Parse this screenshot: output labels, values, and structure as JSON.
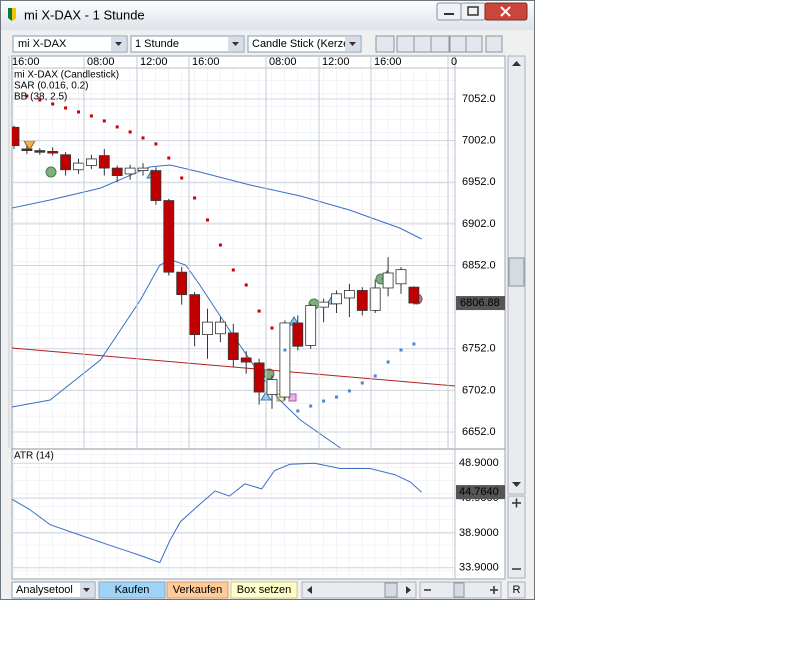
{
  "window": {
    "title": "mi X-DAX - 1 Stunde"
  },
  "toolbar": {
    "instrument": "mi X-DAX",
    "interval": "1 Stunde",
    "chart_type": "Candle Stick (Kerze"
  },
  "chart_data": [
    {
      "type": "candlestick",
      "legend": [
        "mi X-DAX (Candlestick)",
        "SAR (0.016, 0.2)",
        "BB (38, 2.5)"
      ],
      "x_labels": [
        "16:00",
        "08:00",
        "12:00",
        "16:00",
        "08:00",
        "12:00",
        "16:00",
        "0"
      ],
      "open": [
        7018,
        6992,
        6990,
        6989,
        6985,
        6967,
        6972,
        6984,
        6969,
        6962,
        6966,
        6966,
        6930,
        6844,
        6817,
        6769,
        6770,
        6771,
        6741,
        6735,
        6697,
        6694,
        6783,
        6756,
        6802,
        6806,
        6813,
        6822,
        6798,
        6825,
        6830,
        6826
      ],
      "high": [
        7020,
        6996,
        6993,
        6994,
        6988,
        6980,
        6985,
        6992,
        6972,
        6973,
        6975,
        6970,
        6932,
        6850,
        6820,
        6800,
        6790,
        6782,
        6749,
        6740,
        6720,
        6786,
        6792,
        6806,
        6812,
        6822,
        6830,
        6826,
        6835,
        6862,
        6850,
        6827
      ],
      "low": [
        6992,
        6986,
        6985,
        6984,
        6960,
        6962,
        6968,
        6960,
        6952,
        6955,
        6960,
        6925,
        6840,
        6805,
        6755,
        6740,
        6760,
        6730,
        6722,
        6685,
        6680,
        6690,
        6750,
        6752,
        6784,
        6795,
        6790,
        6792,
        6795,
        6815,
        6818,
        6805
      ],
      "close": [
        6996,
        6990,
        6988,
        6987,
        6967,
        6975,
        6980,
        6969,
        6960,
        6969,
        6969,
        6930,
        6844,
        6817,
        6769,
        6784,
        6784,
        6739,
        6736,
        6700,
        6715,
        6783,
        6755,
        6804,
        6808,
        6818,
        6822,
        6798,
        6825,
        6843,
        6847,
        6806.88
      ],
      "up_color": "#ffffff",
      "down_color": "#c00000",
      "sar": {
        "values": [
          null,
          7055.6,
          7050.8,
          7046,
          7041.2,
          7036.4,
          7031.6,
          7025.6,
          7018.4,
          7012.4,
          7005.2,
          6998,
          6981.1,
          6957.1,
          6933.1,
          6906.7,
          6876.6,
          6846.6,
          6828.6,
          6797.3,
          6776.9,
          6750.5,
          6677.3,
          6683.2,
          6689.2,
          6694,
          6701.3,
          6710.9,
          6719.3,
          6736.1,
          6750.5,
          6757.7
        ],
        "color_above": "#cc0000",
        "color_below": "#4a86d8"
      },
      "bands": {
        "color": "#3a6fc4",
        "upper": {
          "x": [
            -0.16,
            2.8,
            6.7,
            10.5,
            12.1,
            14.4,
            18.3,
            22.2,
            26,
            29.9,
            31.6
          ],
          "values": [
            6921,
            6930.7,
            6945,
            6970.3,
            6972.7,
            6964.3,
            6948.7,
            6935.5,
            6918.7,
            6897,
            6883.8
          ]
        },
        "lower": {
          "x": [
            -0.16,
            2.8,
            6.7,
            9.8,
            11.3,
            12.2,
            13.3,
            14.4,
            16.7,
            19.1,
            20.6,
            22.2,
            25.3
          ],
          "values": [
            6682,
            6690.4,
            6738.5,
            6810.6,
            6852.6,
            6858.6,
            6852.6,
            6828.6,
            6774.5,
            6720.5,
            6690.4,
            6666.4,
            6632.8
          ]
        }
      },
      "trendline": {
        "x": [
          -0.16,
          34.2
        ],
        "values": [
          6752.9,
          6707.3
        ],
        "color": "#b22222"
      },
      "ylim": [
        6632.8,
        7089.2
      ],
      "yticks": [
        {
          "value": 6652,
          "label": "6652.0"
        },
        {
          "value": 6702,
          "label": "6702.0"
        },
        {
          "value": 6752,
          "label": "6752.0"
        },
        {
          "value": 6852,
          "label": "6852.0"
        },
        {
          "value": 6902,
          "label": "6902.0"
        },
        {
          "value": 6952,
          "label": "6952.0"
        },
        {
          "value": 7002,
          "label": "7002.0"
        },
        {
          "value": 7052,
          "label": "7052.0"
        }
      ],
      "last_price": 6806.88,
      "grid": true
    },
    {
      "type": "line",
      "legend": "ATR (14)",
      "x": [
        -0.16,
        1.2,
        2.8,
        5.1,
        7.4,
        9.8,
        11.3,
        12.1,
        12.9,
        14.4,
        15.6,
        16.7,
        17.9,
        19.2,
        20.2,
        21.4,
        23.3,
        25.3,
        27.6,
        29.5,
        30.7,
        31.6
      ],
      "values": [
        43.75,
        42.28,
        40.08,
        38.61,
        37.14,
        35.66,
        34.64,
        37.87,
        40.52,
        43.02,
        44.93,
        44.19,
        45.96,
        45.22,
        47.87,
        48.75,
        48.9,
        48.16,
        48.16,
        47.28,
        46.25,
        44.764
      ],
      "color": "#3b6fc4",
      "ylim": [
        32.43,
        50.81
      ],
      "yticks": [
        {
          "value": 33.9,
          "label": "33.9000"
        },
        {
          "value": 38.9,
          "label": "38.9000"
        },
        {
          "value": 43.9,
          "label": "43.9000"
        },
        {
          "value": 48.9,
          "label": "48.9000"
        }
      ],
      "last": {
        "value": 44.764,
        "label": "44.7640"
      },
      "grid": true
    }
  ],
  "bottom_bar": {
    "tool": "Analysetool",
    "buy": "Kaufen",
    "sell": "Verkaufen",
    "box": "Box setzen",
    "reset": "R"
  }
}
